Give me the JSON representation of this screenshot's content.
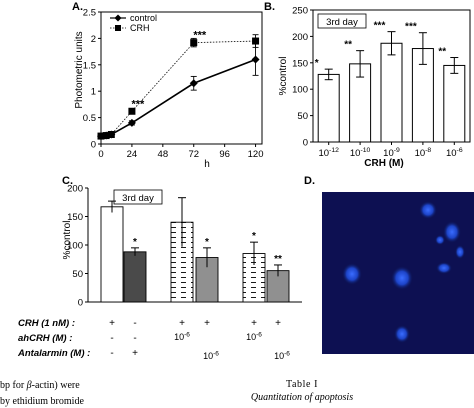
{
  "chart_data": [
    {
      "panel": "A.",
      "type": "line",
      "xlabel": "h",
      "ylabel": "Photometric units",
      "xticks": [
        "0",
        "24",
        "48",
        "72",
        "96",
        "120"
      ],
      "yticks": [
        "0",
        "0.5",
        "1",
        "1.5",
        "2",
        "2.5"
      ],
      "xlim": [
        0,
        125
      ],
      "ylim": [
        0,
        2.5
      ],
      "grid": false,
      "legend_position": "top-left",
      "significance": [
        {
          "x": 24,
          "y": 0.62,
          "label": "***"
        },
        {
          "x": 72,
          "y": 1.92,
          "label": "***"
        }
      ],
      "series": [
        {
          "name": "control",
          "marker": "diamond",
          "color": "#000000",
          "x": [
            0,
            4,
            8,
            24,
            72,
            120
          ],
          "y": [
            0.15,
            0.16,
            0.18,
            0.4,
            1.15,
            1.6
          ],
          "err": [
            0.02,
            0.02,
            0.02,
            0.04,
            0.13,
            0.3
          ]
        },
        {
          "name": "CRH",
          "marker": "square",
          "color": "#000000",
          "x": [
            0,
            4,
            8,
            24,
            72,
            120
          ],
          "y": [
            0.15,
            0.16,
            0.18,
            0.62,
            1.92,
            1.95
          ],
          "err": [
            0.02,
            0.02,
            0.02,
            0.05,
            0.08,
            0.12
          ]
        }
      ]
    },
    {
      "panel": "B.",
      "type": "bar",
      "inset_label": "3rd day",
      "xlabel": "CRH (M)",
      "ylabel": "%control",
      "categories": [
        "10-12",
        "10-10",
        "10-9",
        "10-8",
        "10-6"
      ],
      "category_base": "10",
      "category_exp": [
        "-12",
        "-10",
        "-9",
        "-8",
        "-6"
      ],
      "yticks": [
        "0",
        "50",
        "100",
        "150",
        "200",
        "250"
      ],
      "ylim": [
        0,
        250
      ],
      "values": [
        128,
        148,
        187,
        177,
        145
      ],
      "err": [
        10,
        25,
        22,
        30,
        15
      ],
      "significance": [
        "*",
        "**",
        "***",
        "***",
        "**"
      ],
      "grid": false
    },
    {
      "panel": "C.",
      "type": "bar",
      "inset_label": "3rd day",
      "ylabel": "%control",
      "yticks": [
        "0",
        "50",
        "100",
        "150",
        "200"
      ],
      "ylim": [
        0,
        200
      ],
      "values": [
        167,
        88,
        140,
        78,
        85,
        55
      ],
      "err": [
        10,
        7,
        43,
        17,
        20,
        10
      ],
      "significance": [
        "",
        "*",
        "",
        "*",
        "*",
        "**"
      ],
      "fills": [
        "white",
        "darkgray",
        "dashed",
        "gray",
        "dashed",
        "gray"
      ],
      "treatment_rows": [
        {
          "label": "CRH (1 nM) :",
          "cells": [
            "+",
            "-",
            "+",
            "+",
            "+",
            "+"
          ]
        },
        {
          "label": "ahCRH (M) :",
          "cells": [
            "-",
            "-",
            "10-6",
            "",
            "10-6",
            ""
          ],
          "bases": [
            "",
            "",
            "10",
            "",
            "10",
            ""
          ],
          "exps": [
            "",
            "",
            "-6",
            "",
            "-6",
            ""
          ]
        },
        {
          "label": "Antalarmin (M) :",
          "cells": [
            "-",
            "+",
            "",
            "10-6",
            "",
            "10-6"
          ],
          "bases": [
            "",
            "",
            "",
            "10",
            "",
            "10"
          ],
          "exps": [
            "",
            "",
            "",
            "-6",
            "",
            "-6"
          ]
        }
      ]
    }
  ],
  "panel_d": {
    "label": "D."
  },
  "footer": {
    "left_line1_pre": "bp for ",
    "left_line1_greek": "β",
    "left_line1_post": "-actin) were",
    "left_line2": "by ethidium bromide",
    "table_title": "Table I",
    "table_subtitle": "Quantitation of apoptosis"
  }
}
